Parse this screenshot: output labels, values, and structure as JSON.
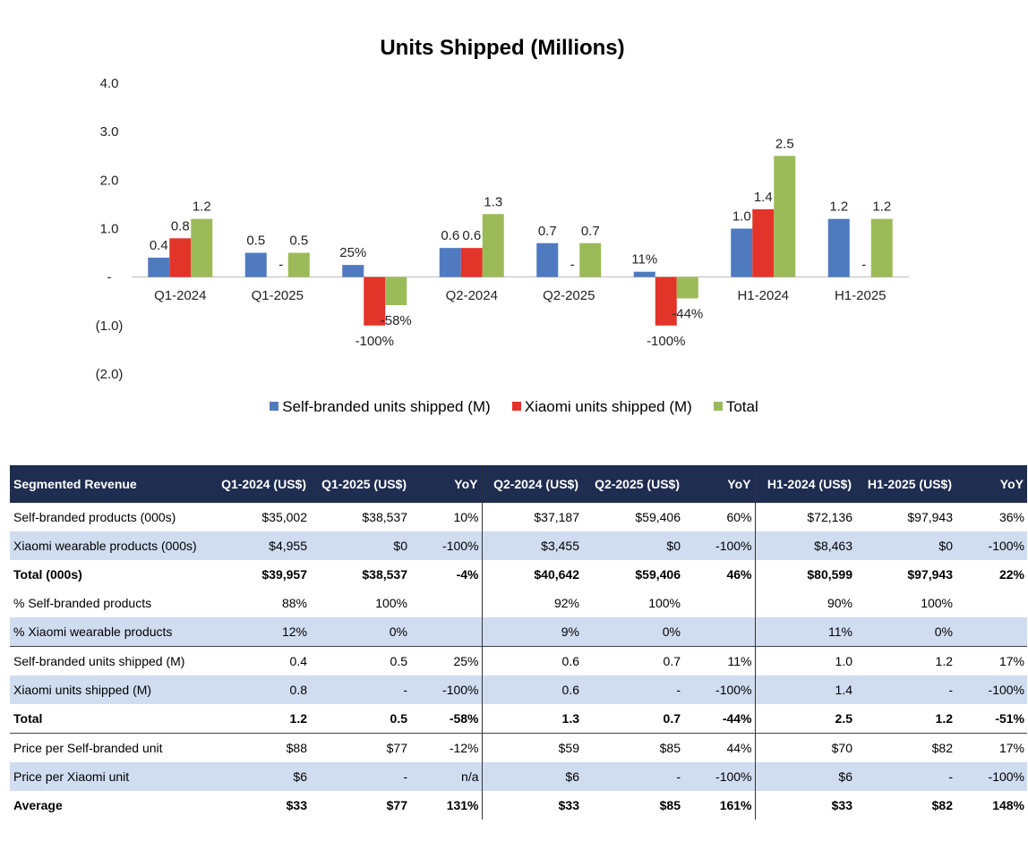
{
  "chart_data": {
    "type": "bar",
    "title": "Units Shipped (Millions)",
    "categories": [
      "Q1-2024",
      "Q1-2025",
      "",
      "Q2-2024",
      "Q2-2025",
      "",
      "H1-2024",
      "H1-2025"
    ],
    "series": [
      {
        "name": "Self-branded units shipped (M)",
        "color": "#4f7abf",
        "values": [
          0.4,
          0.5,
          0.25,
          0.6,
          0.7,
          0.11,
          1.0,
          1.2
        ],
        "labels": [
          "0.4",
          "0.5",
          "25%",
          "0.6",
          "0.7",
          "11%",
          "1.0",
          "1.2"
        ]
      },
      {
        "name": "Xiaomi units shipped (M)",
        "color": "#e3342a",
        "values": [
          0.8,
          0,
          -1.0,
          0.6,
          0,
          -1.0,
          1.4,
          0
        ],
        "labels": [
          "0.8",
          "-",
          "-100%",
          "0.6",
          "-",
          "-100%",
          "1.4",
          "-"
        ]
      },
      {
        "name": "Total",
        "color": "#9bbb59",
        "values": [
          1.2,
          0.5,
          -0.58,
          1.3,
          0.7,
          -0.44,
          2.5,
          1.2
        ],
        "labels": [
          "1.2",
          "0.5",
          "-58%",
          "1.3",
          "0.7",
          "-44%",
          "2.5",
          "1.2"
        ]
      }
    ],
    "yticks": [
      {
        "value": 4,
        "label": "4.0"
      },
      {
        "value": 3,
        "label": "3.0"
      },
      {
        "value": 2,
        "label": "2.0"
      },
      {
        "value": 1,
        "label": "1.0"
      },
      {
        "value": 0,
        "label": "-"
      },
      {
        "value": -1,
        "label": "(1.0)"
      },
      {
        "value": -2,
        "label": "(2.0)"
      }
    ],
    "ylim": [
      -2,
      4
    ],
    "xlabel": "",
    "ylabel": "",
    "legend": "bottom",
    "grid": false
  },
  "table": {
    "headers": [
      "Segmented Revenue",
      "Q1-2024 (US$)",
      "Q1-2025 (US$)",
      "YoY",
      "Q2-2024 (US$)",
      "Q2-2025 (US$)",
      "YoY",
      "H1-2024 (US$)",
      "H1-2025 (US$)",
      "YoY"
    ],
    "header_color": "#1f2d50",
    "shade_color": "#d0dcf0",
    "rows": [
      {
        "cells": [
          "Self-branded products (000s)",
          "$35,002",
          "$38,537",
          "10%",
          "$37,187",
          "$59,406",
          "60%",
          "$72,136",
          "$97,943",
          "36%"
        ],
        "shade": false,
        "bold": false,
        "group_top": false
      },
      {
        "cells": [
          "Xiaomi wearable products (000s)",
          "$4,955",
          "$0",
          "-100%",
          "$3,455",
          "$0",
          "-100%",
          "$8,463",
          "$0",
          "-100%"
        ],
        "shade": true,
        "bold": false,
        "group_top": false
      },
      {
        "cells": [
          "Total (000s)",
          "$39,957",
          "$38,537",
          "-4%",
          "$40,642",
          "$59,406",
          "46%",
          "$80,599",
          "$97,943",
          "22%"
        ],
        "shade": false,
        "bold": true,
        "group_top": false
      },
      {
        "cells": [
          "% Self-branded products",
          "88%",
          "100%",
          "",
          "92%",
          "100%",
          "",
          "90%",
          "100%",
          ""
        ],
        "shade": false,
        "bold": false,
        "group_top": false
      },
      {
        "cells": [
          "% Xiaomi wearable products",
          "12%",
          "0%",
          "",
          "9%",
          "0%",
          "",
          "11%",
          "0%",
          ""
        ],
        "shade": true,
        "bold": false,
        "group_top": false
      },
      {
        "cells": [
          "Self-branded units shipped (M)",
          "0.4",
          "0.5",
          "25%",
          "0.6",
          "0.7",
          "11%",
          "1.0",
          "1.2",
          "17%"
        ],
        "shade": false,
        "bold": false,
        "group_top": true
      },
      {
        "cells": [
          "Xiaomi units shipped (M)",
          "0.8",
          "-",
          "-100%",
          "0.6",
          "-",
          "-100%",
          "1.4",
          "-",
          "-100%"
        ],
        "shade": true,
        "bold": false,
        "group_top": false
      },
      {
        "cells": [
          "Total",
          "1.2",
          "0.5",
          "-58%",
          "1.3",
          "0.7",
          "-44%",
          "2.5",
          "1.2",
          "-51%"
        ],
        "shade": false,
        "bold": true,
        "group_top": false
      },
      {
        "cells": [
          "Price per Self-branded unit",
          "$88",
          "$77",
          "-12%",
          "$59",
          "$85",
          "44%",
          "$70",
          "$82",
          "17%"
        ],
        "shade": false,
        "bold": false,
        "group_top": true
      },
      {
        "cells": [
          "Price per Xiaomi unit",
          "$6",
          "-",
          "n/a",
          "$6",
          "-",
          "-100%",
          "$6",
          "-",
          "-100%"
        ],
        "shade": true,
        "bold": false,
        "group_top": false
      },
      {
        "cells": [
          "Average",
          "$33",
          "$77",
          "131%",
          "$33",
          "$85",
          "161%",
          "$33",
          "$82",
          "148%"
        ],
        "shade": false,
        "bold": true,
        "group_top": false
      }
    ]
  }
}
